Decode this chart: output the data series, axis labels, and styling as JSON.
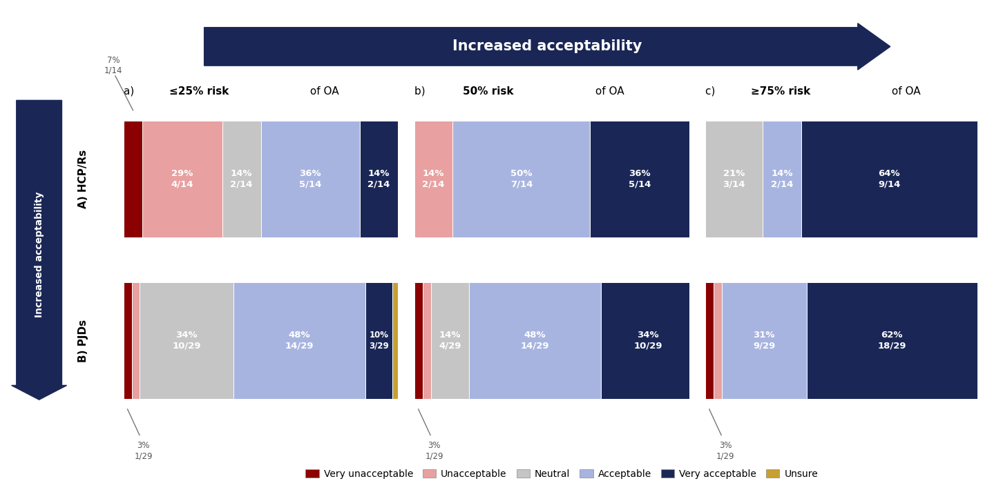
{
  "colors": {
    "very_unacceptable": "#8B0000",
    "unacceptable": "#E8A0A0",
    "neutral": "#C5C5C5",
    "acceptable": "#A8B4E0",
    "very_acceptable": "#1A2756",
    "unsure": "#C8A030"
  },
  "hcp_rows": [
    {
      "segments": [
        {
          "category": "very_unacceptable",
          "pct": 7,
          "frac": "1/14",
          "annotate_above": true,
          "show_in_bar": false
        },
        {
          "category": "unacceptable",
          "pct": 29,
          "frac": "4/14",
          "show_in_bar": true
        },
        {
          "category": "neutral",
          "pct": 14,
          "frac": "2/14",
          "show_in_bar": true
        },
        {
          "category": "acceptable",
          "pct": 36,
          "frac": "5/14",
          "show_in_bar": true
        },
        {
          "category": "very_acceptable",
          "pct": 14,
          "frac": "2/14",
          "show_in_bar": true
        }
      ]
    },
    {
      "segments": [
        {
          "category": "unacceptable",
          "pct": 14,
          "frac": "2/14",
          "show_in_bar": true
        },
        {
          "category": "acceptable",
          "pct": 50,
          "frac": "7/14",
          "show_in_bar": true
        },
        {
          "category": "very_acceptable",
          "pct": 36,
          "frac": "5/14",
          "show_in_bar": true
        }
      ]
    },
    {
      "segments": [
        {
          "category": "neutral",
          "pct": 21,
          "frac": "3/14",
          "show_in_bar": true
        },
        {
          "category": "acceptable",
          "pct": 14,
          "frac": "2/14",
          "show_in_bar": true
        },
        {
          "category": "very_acceptable",
          "pct": 64,
          "frac": "9/14",
          "show_in_bar": true
        }
      ]
    }
  ],
  "pjd_rows": [
    {
      "segments": [
        {
          "category": "very_unacceptable",
          "pct": 3,
          "frac": "1/29",
          "annotate_below": true,
          "show_in_bar": false
        },
        {
          "category": "unacceptable",
          "pct": 3,
          "frac": "",
          "show_in_bar": false
        },
        {
          "category": "neutral",
          "pct": 34,
          "frac": "10/29",
          "show_in_bar": true
        },
        {
          "category": "acceptable",
          "pct": 48,
          "frac": "14/29",
          "show_in_bar": true
        },
        {
          "category": "very_acceptable",
          "pct": 10,
          "frac": "3/29",
          "show_in_bar": true
        },
        {
          "category": "unsure",
          "pct": 3,
          "frac": "",
          "show_in_bar": false
        }
      ]
    },
    {
      "segments": [
        {
          "category": "very_unacceptable",
          "pct": 3,
          "frac": "1/29",
          "annotate_below": true,
          "show_in_bar": false
        },
        {
          "category": "unacceptable",
          "pct": 3,
          "frac": "",
          "show_in_bar": false
        },
        {
          "category": "neutral",
          "pct": 14,
          "frac": "4/29",
          "show_in_bar": true
        },
        {
          "category": "acceptable",
          "pct": 48,
          "frac": "14/29",
          "show_in_bar": true
        },
        {
          "category": "very_acceptable",
          "pct": 34,
          "frac": "10/29",
          "show_in_bar": true
        }
      ]
    },
    {
      "segments": [
        {
          "category": "very_unacceptable",
          "pct": 3,
          "frac": "1/29",
          "annotate_below": true,
          "show_in_bar": false
        },
        {
          "category": "unacceptable",
          "pct": 3,
          "frac": "",
          "show_in_bar": false
        },
        {
          "category": "acceptable",
          "pct": 31,
          "frac": "9/29",
          "show_in_bar": true
        },
        {
          "category": "very_acceptable",
          "pct": 62,
          "frac": "18/29",
          "show_in_bar": true
        }
      ]
    }
  ],
  "col_titles": [
    [
      "a) ",
      "≤25% risk",
      " of OA"
    ],
    [
      "b) ",
      "50% risk",
      " of OA"
    ],
    [
      "c) ",
      "≥75% risk",
      " of OA"
    ]
  ],
  "row_labels": [
    "A) HCP/Rs",
    "B) PJDs"
  ],
  "legend_labels": [
    "Very unacceptable",
    "Unacceptable",
    "Neutral",
    "Acceptable",
    "Very acceptable",
    "Unsure"
  ],
  "legend_colors": [
    "#8B0000",
    "#E8A0A0",
    "#C5C5C5",
    "#A8B4E0",
    "#1A2756",
    "#C8A030"
  ],
  "top_arrow_text": "Increased acceptability",
  "left_arrow_text": "Increased acceptability",
  "arrow_color": "#1A2756"
}
